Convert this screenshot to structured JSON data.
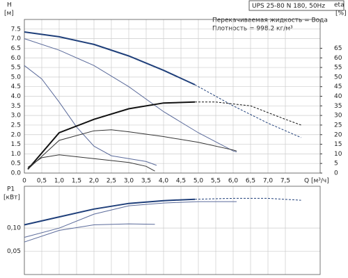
{
  "header": {
    "title": "UPS 25-80 N 180, 50Hz",
    "notes": [
      "Перекачиваемая жидкость = Вода",
      "Плотность = 998.2 кг/м³"
    ]
  },
  "chart_data": [
    {
      "type": "line",
      "ylabel": "H",
      "ylabel_unit": "[м]",
      "y2label": "eta",
      "y2label_unit": "[%]",
      "xlabel": "Q [м³/ч]",
      "xlim": [
        0,
        8.5
      ],
      "ylim": [
        0,
        8
      ],
      "y2lim": [
        0,
        80
      ],
      "grid": true,
      "xticks": [
        0,
        {
          "value": 0.5,
          "label": "0,5"
        },
        {
          "value": 1,
          "label": "1,0"
        },
        {
          "value": 1.5,
          "label": "1,5"
        },
        {
          "value": 2,
          "label": "2,0"
        },
        {
          "value": 2.5,
          "label": "2,5"
        },
        {
          "value": 3,
          "label": "3,0"
        },
        {
          "value": 3.5,
          "label": "3,5"
        },
        {
          "value": 4,
          "label": "4,0"
        },
        {
          "value": 4.5,
          "label": "4,5"
        },
        {
          "value": 5,
          "label": "5,0"
        },
        {
          "value": 5.5,
          "label": "5,5"
        },
        {
          "value": 6,
          "label": "6,0"
        },
        {
          "value": 6.5,
          "label": "6,5"
        },
        {
          "value": 7,
          "label": "7,0"
        },
        {
          "value": 7.5,
          "label": "7,5"
        }
      ],
      "yticks": [
        {
          "value": 0,
          "label": "0.0"
        },
        0.5,
        {
          "value": 1,
          "label": "1.0"
        },
        1.5,
        {
          "value": 2,
          "label": "2.0"
        },
        2.5,
        {
          "value": 3,
          "label": "3.0"
        },
        3.5,
        {
          "value": 4,
          "label": "4.0"
        },
        4.5,
        {
          "value": 5,
          "label": "5.0"
        },
        5.5,
        {
          "value": 6,
          "label": "6.0"
        },
        6.5,
        {
          "value": 7,
          "label": "7.0"
        },
        7.5
      ],
      "y2ticks": [
        0,
        5,
        10,
        15,
        20,
        25,
        30,
        35,
        40,
        45,
        50,
        55,
        60,
        65
      ],
      "series": [
        {
          "color": "#1f3f7a",
          "width": 2,
          "dashed": false,
          "x": [
            0,
            1,
            2,
            3,
            4,
            4.9
          ],
          "values": [
            7.35,
            7.1,
            6.7,
            6.1,
            5.35,
            4.6
          ]
        },
        {
          "color": "#1f3f7a",
          "width": 1,
          "dashed": true,
          "x": [
            4.9,
            6,
            7,
            7.95
          ],
          "values": [
            4.6,
            3.5,
            2.6,
            1.85
          ]
        },
        {
          "color": "#5a6a9a",
          "width": 1,
          "dashed": false,
          "x": [
            0,
            1,
            2,
            3,
            4,
            5,
            6,
            6.1
          ],
          "values": [
            7.0,
            6.4,
            5.6,
            4.5,
            3.2,
            2.1,
            1.15,
            1.1
          ]
        },
        {
          "color": "#5a6a9a",
          "width": 1,
          "dashed": false,
          "x": [
            0,
            0.5,
            1,
            1.5,
            2,
            2.5,
            3,
            3.5,
            3.8
          ],
          "values": [
            5.6,
            4.9,
            3.7,
            2.4,
            1.4,
            0.9,
            0.75,
            0.6,
            0.4
          ]
        },
        {
          "color": "#111111",
          "width": 2,
          "dashed": false,
          "axis": "y2",
          "x": [
            0.1,
            1,
            2,
            3,
            4,
            4.9
          ],
          "values": [
            2,
            21,
            28,
            33.5,
            36.5,
            37
          ]
        },
        {
          "color": "#111111",
          "width": 1,
          "dashed": true,
          "axis": "y2",
          "x": [
            4.9,
            5.5,
            6.5,
            7.5,
            7.95
          ],
          "values": [
            37,
            37,
            35,
            28,
            25
          ]
        },
        {
          "color": "#333333",
          "width": 1,
          "dashed": false,
          "axis": "y2",
          "x": [
            0.1,
            1,
            2,
            2.5,
            3,
            4,
            5,
            6,
            6.1
          ],
          "values": [
            2,
            17,
            22,
            22.5,
            21.5,
            19,
            16,
            12,
            11.5
          ]
        },
        {
          "color": "#333333",
          "width": 1,
          "dashed": false,
          "axis": "y2",
          "x": [
            0.1,
            0.5,
            1,
            1.5,
            2,
            3,
            3.5,
            3.75
          ],
          "values": [
            3,
            8,
            9.5,
            8.5,
            7.5,
            5.5,
            3.5,
            1
          ]
        }
      ]
    },
    {
      "type": "line",
      "ylabel": "P1",
      "ylabel_unit": "[кВт]",
      "xlim": [
        0,
        8.5
      ],
      "ylim": [
        0,
        0.19
      ],
      "grid": true,
      "yticks": [
        {
          "value": 0.05,
          "label": "0,05"
        },
        {
          "value": 0.1,
          "label": "0,10"
        }
      ],
      "series": [
        {
          "color": "#1f3f7a",
          "width": 2,
          "dashed": false,
          "x": [
            0,
            1,
            2,
            3,
            4,
            4.9
          ],
          "values": [
            0.107,
            0.124,
            0.141,
            0.153,
            0.159,
            0.162
          ]
        },
        {
          "color": "#1f3f7a",
          "width": 1,
          "dashed": true,
          "x": [
            4.9,
            6,
            7,
            7.95
          ],
          "values": [
            0.162,
            0.164,
            0.164,
            0.16
          ]
        },
        {
          "color": "#5a6a9a",
          "width": 1,
          "dashed": false,
          "x": [
            0,
            1,
            2,
            3,
            4,
            5,
            6.1
          ],
          "values": [
            0.08,
            0.1,
            0.13,
            0.148,
            0.154,
            0.157,
            0.157
          ]
        },
        {
          "color": "#5a6a9a",
          "width": 1,
          "dashed": false,
          "x": [
            0,
            1,
            2,
            3,
            3.75
          ],
          "values": [
            0.07,
            0.095,
            0.107,
            0.109,
            0.108
          ]
        }
      ]
    }
  ]
}
